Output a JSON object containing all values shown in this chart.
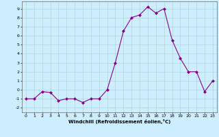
{
  "x": [
    0,
    1,
    2,
    3,
    4,
    5,
    6,
    7,
    8,
    9,
    10,
    11,
    12,
    13,
    14,
    15,
    16,
    17,
    18,
    19,
    20,
    21,
    22,
    23
  ],
  "y": [
    -1,
    -1,
    -0.2,
    -0.3,
    -1.2,
    -1,
    -1,
    -1.4,
    -1,
    -1,
    0,
    3,
    6.5,
    8,
    8.3,
    9.2,
    8.5,
    9,
    5.5,
    3.5,
    2,
    2,
    -0.2,
    1
  ],
  "line_color": "#880088",
  "marker_color": "#880088",
  "bg_color": "#cceeff",
  "grid_color": "#aacccc",
  "xlabel": "Windchill (Refroidissement éolien,°C)",
  "xlim": [
    -0.5,
    23.5
  ],
  "ylim": [
    -2.5,
    9.8
  ],
  "yticks": [
    -2,
    -1,
    0,
    1,
    2,
    3,
    4,
    5,
    6,
    7,
    8,
    9
  ],
  "xticks": [
    0,
    1,
    2,
    3,
    4,
    5,
    6,
    7,
    8,
    9,
    10,
    11,
    12,
    13,
    14,
    15,
    16,
    17,
    18,
    19,
    20,
    21,
    22,
    23
  ]
}
